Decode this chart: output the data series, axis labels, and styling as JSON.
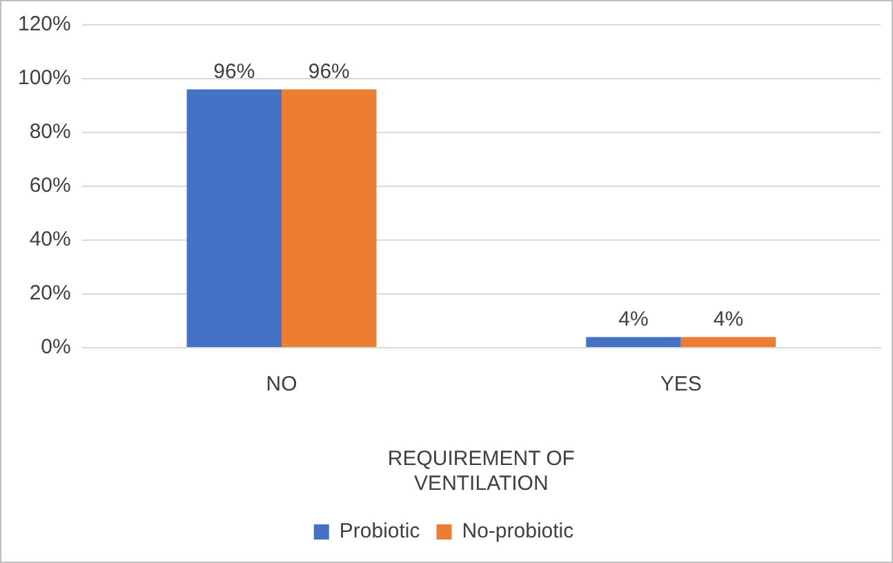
{
  "chart_data": {
    "type": "bar",
    "xlabel": "REQUIREMENT OF VENTILATION",
    "categories": [
      "NO",
      "YES"
    ],
    "series": [
      {
        "name": "Probiotic",
        "color": "#4472c4",
        "values": [
          96,
          4
        ],
        "value_labels": [
          "96%",
          "4%"
        ]
      },
      {
        "name": "No-probiotic",
        "color": "#ed7d31",
        "values": [
          96,
          4
        ],
        "value_labels": [
          "96%",
          "4%"
        ]
      }
    ],
    "ylim": [
      0,
      120
    ],
    "yticks": [
      {
        "value": 0,
        "label": "0%"
      },
      {
        "value": 20,
        "label": "20%"
      },
      {
        "value": 40,
        "label": "40%"
      },
      {
        "value": 60,
        "label": "60%"
      },
      {
        "value": 80,
        "label": "80%"
      },
      {
        "value": 100,
        "label": "100%"
      },
      {
        "value": 120,
        "label": "120%"
      }
    ],
    "grid": "y",
    "legend": "bottom"
  }
}
